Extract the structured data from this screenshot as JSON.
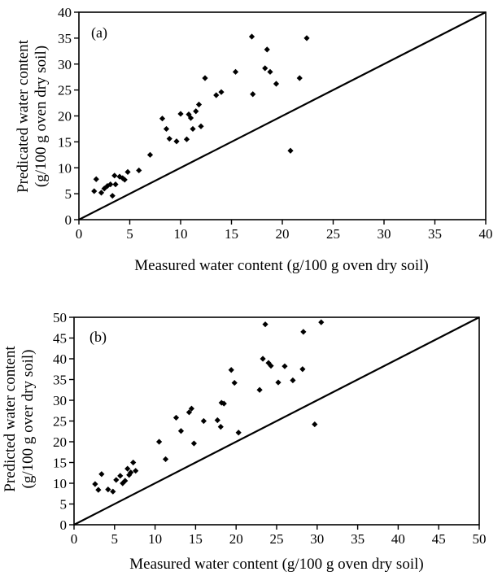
{
  "chart_data": [
    {
      "type": "scatter",
      "panel_label": "(a)",
      "xlabel": "Measured water content (g/100 g oven dry soil)",
      "ylabel": [
        "Predicated water content",
        "(g/100 g oven dry soil)"
      ],
      "xlim": [
        0,
        40
      ],
      "ylim": [
        0,
        40
      ],
      "x_ticks": [
        "0",
        "5",
        "10",
        "15",
        "20",
        "25",
        "30",
        "35",
        "40"
      ],
      "y_ticks": [
        "0",
        "5",
        "10",
        "15",
        "20",
        "25",
        "30",
        "35",
        "40"
      ],
      "reference_line": {
        "from": [
          0,
          0
        ],
        "to": [
          40,
          40
        ]
      },
      "grid": false,
      "series": [
        {
          "points": [
            [
              1.5,
              5.5
            ],
            [
              1.7,
              7.8
            ],
            [
              2.2,
              5.2
            ],
            [
              2.5,
              6.0
            ],
            [
              2.8,
              6.5
            ],
            [
              3.1,
              6.8
            ],
            [
              3.3,
              4.6
            ],
            [
              3.5,
              8.5
            ],
            [
              3.6,
              6.8
            ],
            [
              4.0,
              8.3
            ],
            [
              4.3,
              8.0
            ],
            [
              4.5,
              7.7
            ],
            [
              4.8,
              9.2
            ],
            [
              5.9,
              9.5
            ],
            [
              7.0,
              12.5
            ],
            [
              8.2,
              19.5
            ],
            [
              8.6,
              17.5
            ],
            [
              8.9,
              15.6
            ],
            [
              9.6,
              15.1
            ],
            [
              10.0,
              20.4
            ],
            [
              10.6,
              15.5
            ],
            [
              10.8,
              20.3
            ],
            [
              11.0,
              19.6
            ],
            [
              11.2,
              17.5
            ],
            [
              11.5,
              20.9
            ],
            [
              11.8,
              22.2
            ],
            [
              12.0,
              18.0
            ],
            [
              12.4,
              27.3
            ],
            [
              13.5,
              24.0
            ],
            [
              14.0,
              24.6
            ],
            [
              15.4,
              28.5
            ],
            [
              17.0,
              35.3
            ],
            [
              17.1,
              24.2
            ],
            [
              18.3,
              29.2
            ],
            [
              18.5,
              32.8
            ],
            [
              18.8,
              28.5
            ],
            [
              19.4,
              26.2
            ],
            [
              20.8,
              13.3
            ],
            [
              21.7,
              27.3
            ],
            [
              22.4,
              35.0
            ]
          ]
        }
      ]
    },
    {
      "type": "scatter",
      "panel_label": "(b)",
      "xlabel": "Measured water content (g/100 g oven dry soil)",
      "ylabel": [
        "Predicted water content",
        "(g/100 g over dry soil)"
      ],
      "xlim": [
        0,
        50
      ],
      "ylim": [
        0,
        50
      ],
      "x_ticks": [
        "0",
        "5",
        "10",
        "15",
        "20",
        "25",
        "30",
        "35",
        "40",
        "45",
        "50"
      ],
      "y_ticks": [
        "0",
        "5",
        "10",
        "15",
        "20",
        "25",
        "30",
        "35",
        "40",
        "45",
        "50"
      ],
      "reference_line": {
        "from": [
          0,
          0
        ],
        "to": [
          50,
          50
        ]
      },
      "grid": false,
      "series": [
        {
          "points": [
            [
              2.6,
              9.8
            ],
            [
              3.0,
              8.4
            ],
            [
              3.4,
              12.2
            ],
            [
              4.2,
              8.5
            ],
            [
              4.8,
              8.0
            ],
            [
              5.2,
              10.8
            ],
            [
              5.7,
              11.8
            ],
            [
              6.0,
              10.0
            ],
            [
              6.3,
              10.6
            ],
            [
              6.6,
              13.5
            ],
            [
              6.8,
              12.0
            ],
            [
              7.0,
              12.6
            ],
            [
              7.3,
              15.0
            ],
            [
              7.6,
              13.0
            ],
            [
              10.5,
              20.0
            ],
            [
              11.3,
              15.8
            ],
            [
              12.6,
              25.8
            ],
            [
              13.2,
              22.6
            ],
            [
              14.2,
              27.1
            ],
            [
              14.5,
              28.0
            ],
            [
              14.8,
              19.6
            ],
            [
              16.0,
              25.0
            ],
            [
              17.7,
              25.2
            ],
            [
              18.2,
              29.4
            ],
            [
              18.5,
              29.2
            ],
            [
              18.1,
              23.6
            ],
            [
              19.4,
              37.3
            ],
            [
              19.8,
              34.2
            ],
            [
              20.3,
              22.2
            ],
            [
              22.9,
              32.5
            ],
            [
              23.3,
              40.0
            ],
            [
              23.6,
              48.3
            ],
            [
              24.0,
              39.0
            ],
            [
              24.3,
              38.3
            ],
            [
              25.2,
              34.3
            ],
            [
              26.0,
              38.2
            ],
            [
              27.0,
              34.8
            ],
            [
              28.2,
              37.5
            ],
            [
              28.3,
              46.5
            ],
            [
              29.7,
              24.2
            ],
            [
              30.5,
              48.8
            ]
          ]
        }
      ]
    }
  ]
}
